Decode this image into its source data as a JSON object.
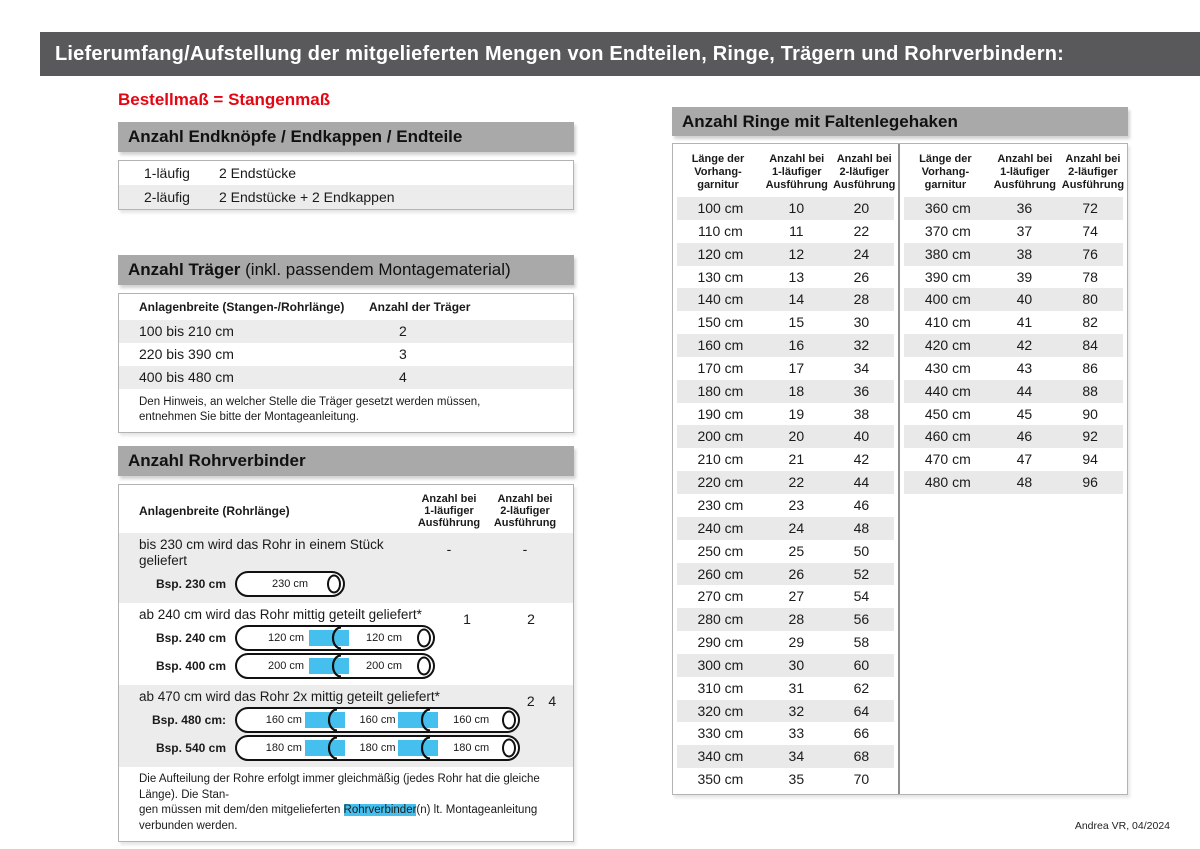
{
  "page": {
    "title": "Lieferumfang/Aufstellung der mitgelieferten Mengen von Endteilen, Ringe, Trägern und Rohrverbindern:",
    "footer": "Andrea VR, 04/2024",
    "colors": {
      "title_bar": "#59595b",
      "section_bar": "#a9a9a9",
      "accent_red": "#e30613",
      "highlight_blue": "#45c0ee",
      "stripe_gray": "#ececec",
      "border_gray": "#b3b3b3"
    }
  },
  "left": {
    "subtitle": "Bestellmaß = Stangenmaß",
    "endteile": {
      "heading": "Anzahl Endknöpfe / Endkappen / Endteile",
      "rows": [
        [
          "1-läufig",
          "2 Endstücke"
        ],
        [
          "2-läufig",
          "2 Endstücke + 2 Endkappen"
        ]
      ]
    },
    "traeger": {
      "heading_bold": "Anzahl Träger",
      "heading_rest": " (inkl. passendem Montagematerial)",
      "col1": "Anlagenbreite (Stangen-/Rohrlänge)",
      "col2": "Anzahl der Träger",
      "rows": [
        [
          "100 bis 210 cm",
          "2"
        ],
        [
          "220 bis 390 cm",
          "3"
        ],
        [
          "400 bis 480 cm",
          "4"
        ]
      ],
      "note": "Den Hinweis, an welcher Stelle die Träger gesetzt werden müssen, entnehmen Sie bitte der Montageanleitung."
    },
    "rohrverbinder": {
      "heading": "Anzahl Rohrverbinder",
      "col1": "Anlagenbreite (Rohrlänge)",
      "col2": "Anzahl bei\n1-läufiger\nAusführung",
      "col3": "Anzahl bei\n2-läufiger\nAusführung",
      "cases": [
        {
          "text": "bis 230 cm wird das Rohr in einem Stück geliefert",
          "v1": "-",
          "v2": "-",
          "rods": [
            {
              "label": "Bsp. 230 cm",
              "segments": [
                "230 cm"
              ]
            }
          ]
        },
        {
          "text": "ab 240 cm wird das Rohr mittig geteilt geliefert*",
          "v1": "1",
          "v2": "2",
          "rods": [
            {
              "label": "Bsp. 240 cm",
              "segments": [
                "120 cm",
                "120 cm"
              ]
            },
            {
              "label": "Bsp. 400 cm",
              "segments": [
                "200 cm",
                "200 cm"
              ]
            }
          ]
        },
        {
          "text": "ab 470 cm wird das Rohr 2x mittig geteilt geliefert*",
          "v1": "2",
          "v2": "4",
          "rods": [
            {
              "label": "Bsp. 480 cm:",
              "segments": [
                "160 cm",
                "160 cm",
                "160 cm"
              ]
            },
            {
              "label": "Bsp. 540 cm",
              "segments": [
                "180 cm",
                "180 cm",
                "180 cm"
              ]
            }
          ]
        }
      ],
      "footnote_line1": "Die Aufteilung der Rohre erfolgt immer gleichmäßig (jedes Rohr hat die gleiche Länge). Die Stan-",
      "footnote_line2_pre": "gen müssen mit dem/den mitgelieferten ",
      "footnote_highlight": "Rohrverbinder",
      "footnote_line2_post": "(n) lt. Montageanleitung verbunden werden."
    }
  },
  "rings": {
    "heading": "Anzahl Ringe mit Faltenlegehaken",
    "col_headers": [
      "Länge der\nVorhang-\ngarnitur",
      "Anzahl bei\n1-läufiger\nAusführung",
      "Anzahl bei\n2-läufiger\nAusführung"
    ],
    "table_left": [
      [
        "100 cm",
        "10",
        "20"
      ],
      [
        "110 cm",
        "11",
        "22"
      ],
      [
        "120 cm",
        "12",
        "24"
      ],
      [
        "130 cm",
        "13",
        "26"
      ],
      [
        "140 cm",
        "14",
        "28"
      ],
      [
        "150 cm",
        "15",
        "30"
      ],
      [
        "160 cm",
        "16",
        "32"
      ],
      [
        "170 cm",
        "17",
        "34"
      ],
      [
        "180 cm",
        "18",
        "36"
      ],
      [
        "190 cm",
        "19",
        "38"
      ],
      [
        "200 cm",
        "20",
        "40"
      ],
      [
        "210 cm",
        "21",
        "42"
      ],
      [
        "220 cm",
        "22",
        "44"
      ],
      [
        "230 cm",
        "23",
        "46"
      ],
      [
        "240 cm",
        "24",
        "48"
      ],
      [
        "250 cm",
        "25",
        "50"
      ],
      [
        "260 cm",
        "26",
        "52"
      ],
      [
        "270 cm",
        "27",
        "54"
      ],
      [
        "280 cm",
        "28",
        "56"
      ],
      [
        "290 cm",
        "29",
        "58"
      ],
      [
        "300 cm",
        "30",
        "60"
      ],
      [
        "310 cm",
        "31",
        "62"
      ],
      [
        "320 cm",
        "32",
        "64"
      ],
      [
        "330 cm",
        "33",
        "66"
      ],
      [
        "340 cm",
        "34",
        "68"
      ],
      [
        "350 cm",
        "35",
        "70"
      ]
    ],
    "table_right": [
      [
        "360 cm",
        "36",
        "72"
      ],
      [
        "370 cm",
        "37",
        "74"
      ],
      [
        "380 cm",
        "38",
        "76"
      ],
      [
        "390 cm",
        "39",
        "78"
      ],
      [
        "400 cm",
        "40",
        "80"
      ],
      [
        "410 cm",
        "41",
        "82"
      ],
      [
        "420 cm",
        "42",
        "84"
      ],
      [
        "430 cm",
        "43",
        "86"
      ],
      [
        "440 cm",
        "44",
        "88"
      ],
      [
        "450 cm",
        "45",
        "90"
      ],
      [
        "460 cm",
        "46",
        "92"
      ],
      [
        "470 cm",
        "47",
        "94"
      ],
      [
        "480 cm",
        "48",
        "96"
      ]
    ]
  }
}
